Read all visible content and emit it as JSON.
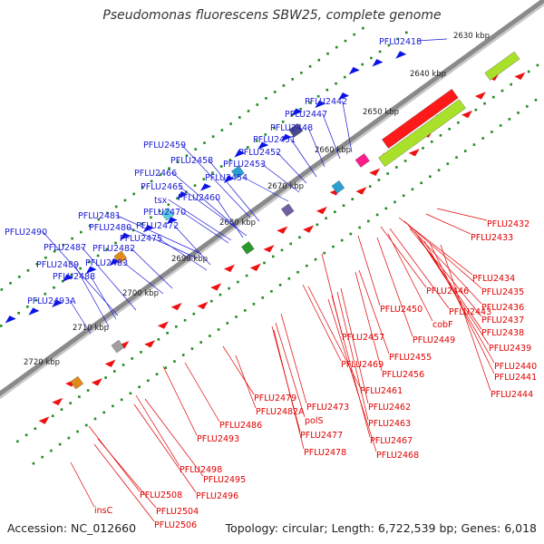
{
  "title": "Pseudomonas fluorescens SBW25, complete genome",
  "footer": {
    "accession": "Accession: NC_012660",
    "summary": "Topology: circular; Length: 6,722,539 bp; Genes: 6,018"
  },
  "colors": {
    "forward_label": "#1a1ad6",
    "reverse_label": "#e00000",
    "forward_gene": "#0a14e6",
    "reverse_gene": "#ee1111",
    "backbone": "#8a8a8a",
    "dots": "#1f8a1f"
  },
  "ticks": [
    {
      "label": "2630 kbp"
    },
    {
      "label": "2640 kbp"
    },
    {
      "label": "2650 kbp"
    },
    {
      "label": "2660 kbp"
    },
    {
      "label": "2670 kbp"
    },
    {
      "label": "2680 kbp"
    },
    {
      "label": "2690 kbp"
    },
    {
      "label": "2700 kbp"
    },
    {
      "label": "2710 kbp"
    },
    {
      "label": "2720 kbp"
    }
  ],
  "forward_labels": [
    {
      "text": "PFLU2418"
    },
    {
      "text": "PFLU2442"
    },
    {
      "text": "PFLU2447"
    },
    {
      "text": "PFLU2448"
    },
    {
      "text": "PFLU2451"
    },
    {
      "text": "PFLU2452"
    },
    {
      "text": "PFLU2453"
    },
    {
      "text": "PFLU2454"
    },
    {
      "text": "PFLU2459"
    },
    {
      "text": "PFLU2458"
    },
    {
      "text": "PFLU2466"
    },
    {
      "text": "PFLU2465"
    },
    {
      "text": "PFLU2460"
    },
    {
      "text": "tsx"
    },
    {
      "text": "PFLU2470"
    },
    {
      "text": "PFLU2481"
    },
    {
      "text": "PFLU2480"
    },
    {
      "text": "PFLU2472"
    },
    {
      "text": "PFLU2475"
    },
    {
      "text": "PFLU2490"
    },
    {
      "text": "PFLU2487"
    },
    {
      "text": "PFLU2482"
    },
    {
      "text": "PFLU2489"
    },
    {
      "text": "PFLU2483"
    },
    {
      "text": "PFLU2488"
    },
    {
      "text": "PFLU2493A"
    }
  ],
  "reverse_labels": [
    {
      "text": "PFLU2432"
    },
    {
      "text": "PFLU2433"
    },
    {
      "text": "PFLU2434"
    },
    {
      "text": "PFLU2435"
    },
    {
      "text": "PFLU2436"
    },
    {
      "text": "PFLU2446"
    },
    {
      "text": "PFLU2437"
    },
    {
      "text": "PFLU2443"
    },
    {
      "text": "PFLU2450"
    },
    {
      "text": "PFLU2438"
    },
    {
      "text": "cobF"
    },
    {
      "text": "PFLU2449"
    },
    {
      "text": "PFLU2439"
    },
    {
      "text": "PFLU2457"
    },
    {
      "text": "PFLU2440"
    },
    {
      "text": "PFLU2455"
    },
    {
      "text": "PFLU2441"
    },
    {
      "text": "PFLU2469"
    },
    {
      "text": "PFLU2456"
    },
    {
      "text": "PFLU2444"
    },
    {
      "text": "PFLU2461"
    },
    {
      "text": "PFLU2479"
    },
    {
      "text": "PFLU2473"
    },
    {
      "text": "PFLU2462"
    },
    {
      "text": "PFLU2482A"
    },
    {
      "text": "polS"
    },
    {
      "text": "PFLU2463"
    },
    {
      "text": "PFLU2486"
    },
    {
      "text": "PFLU2477"
    },
    {
      "text": "PFLU2467"
    },
    {
      "text": "PFLU2493"
    },
    {
      "text": "PFLU2478"
    },
    {
      "text": "PFLU2468"
    },
    {
      "text": "PFLU2498"
    },
    {
      "text": "PFLU2495"
    },
    {
      "text": "PFLU2496"
    },
    {
      "text": "PFLU2508"
    },
    {
      "text": "PFLU2504"
    },
    {
      "text": "insC"
    },
    {
      "text": "PFLU2506"
    }
  ]
}
